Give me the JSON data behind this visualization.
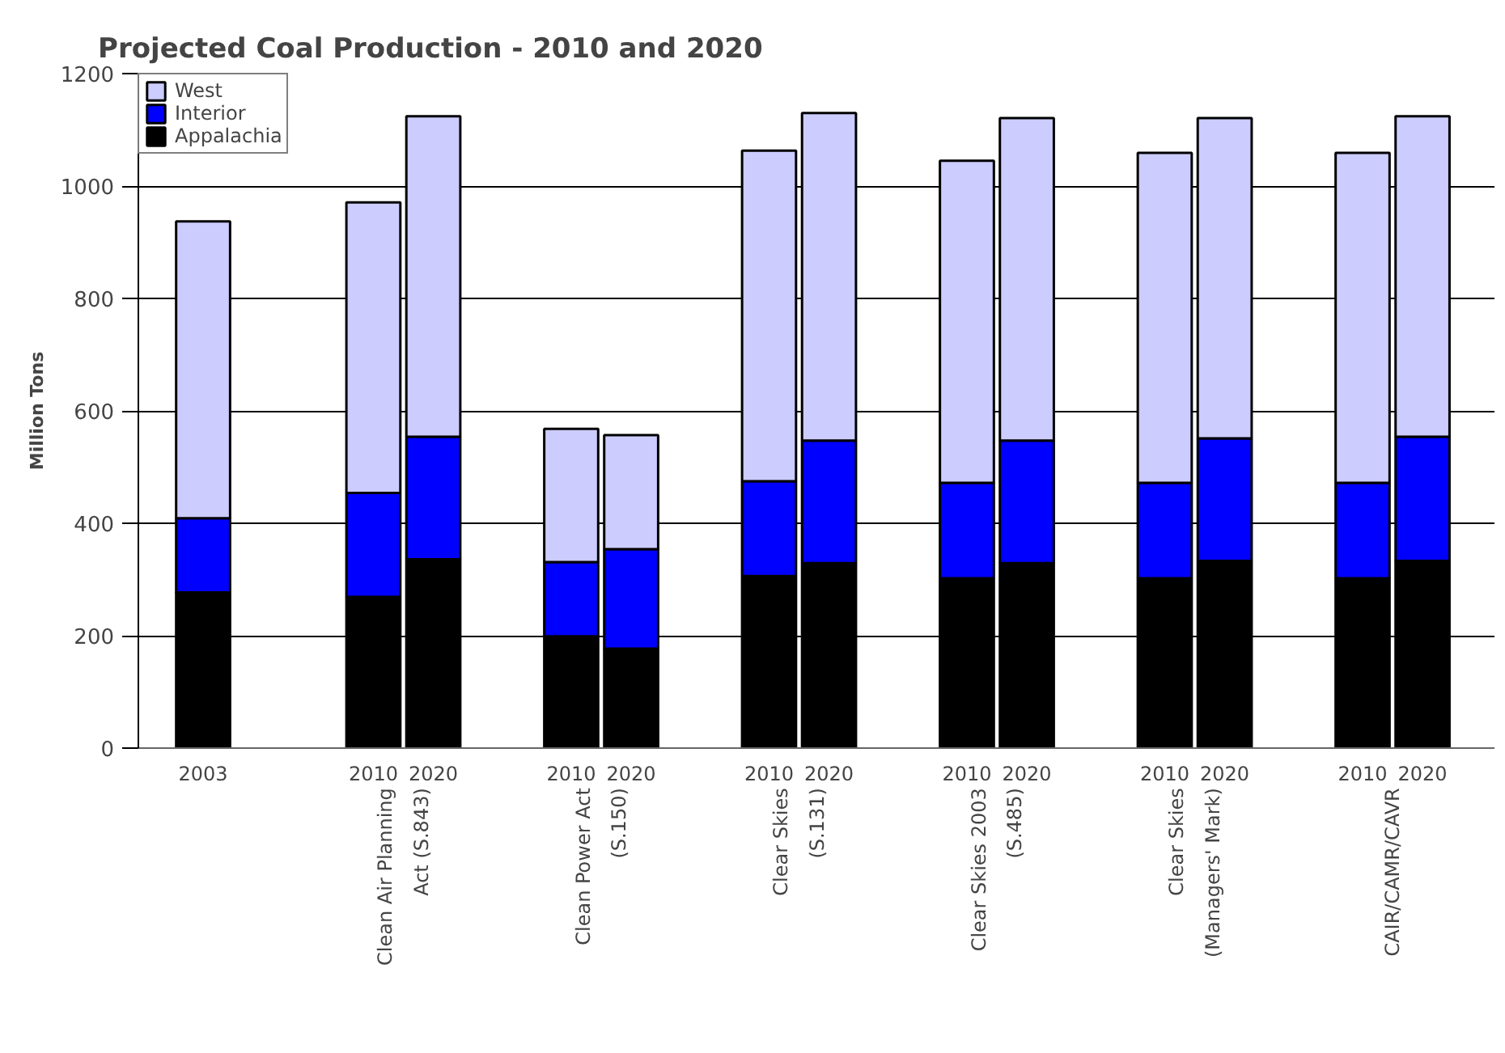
{
  "chart_data": {
    "type": "bar",
    "stacked": true,
    "title": "Projected Coal Production - 2010 and 2020",
    "ylabel": "Million Tons",
    "categories": [
      "2003",
      "2010",
      "2020",
      "2010",
      "2020",
      "2010",
      "2020",
      "2010",
      "2020",
      "2010",
      "2020",
      "2010",
      "2020"
    ],
    "series": [
      {
        "name": "Appalachia",
        "color": "#000000",
        "values": [
          277,
          269,
          336,
          199,
          177,
          306,
          329,
          302,
          329,
          302,
          333,
          302,
          333
        ]
      },
      {
        "name": "Interior",
        "color": "#0000ff",
        "values": [
          132,
          185,
          218,
          132,
          177,
          169,
          218,
          170,
          218,
          170,
          218,
          170,
          221
        ]
      },
      {
        "name": "West",
        "color": "#ccccff",
        "values": [
          528,
          517,
          570,
          237,
          203,
          588,
          583,
          573,
          574,
          587,
          570,
          587,
          570
        ]
      }
    ],
    "annotations": [
      "Clean Air Planning\nAct (S.843)",
      "Clean Power Act\n(S.150)",
      "Clear Skies\n(S.131)",
      "Clear Skies 2003\n(S.485)",
      "Clear Skies\n(Managers' Mark)",
      "CAIR/CAMR/CAVR"
    ],
    "ylim": [
      0,
      1200
    ],
    "yticks": [
      0,
      200,
      400,
      600,
      800,
      1000,
      1200
    ],
    "grid": "y",
    "legend": "top left"
  }
}
